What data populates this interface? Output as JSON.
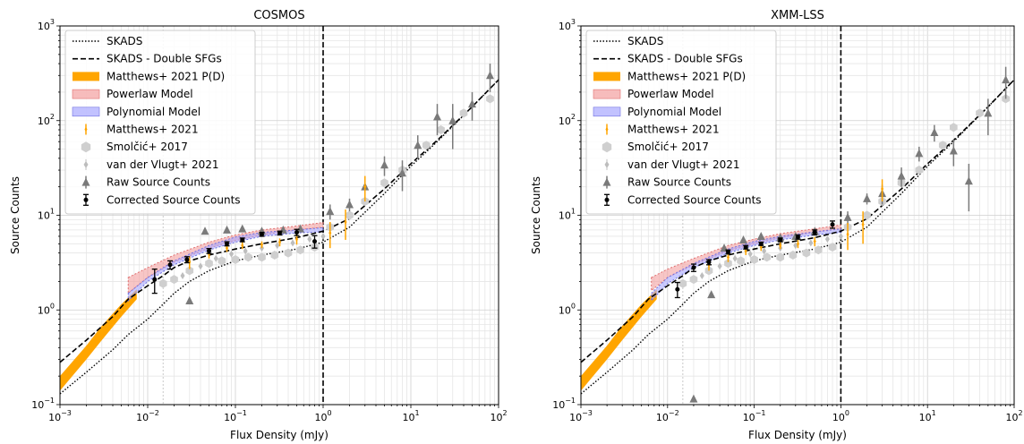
{
  "colors": {
    "matthews_pd": "#ffa500",
    "powerlaw": "#f4a0a0",
    "polynomial": "#a8a8ff",
    "matthews": "#ffa500",
    "smolcic": "#cfcfcf",
    "vandervlugt": "#bdbdbd",
    "raw": "#7a7a7a",
    "corrected": "#000000"
  },
  "chart_data": [
    {
      "type": "scatter",
      "title": "COSMOS",
      "xlabel": "Flux Density (mJy)",
      "ylabel": "Source Counts",
      "xscale": "log",
      "yscale": "log",
      "xlim": [
        0.001,
        100
      ],
      "ylim": [
        0.1,
        1000
      ],
      "x_ticks": [
        {
          "v": 0.001,
          "base": "10",
          "exp": "−3"
        },
        {
          "v": 0.01,
          "base": "10",
          "exp": "−2"
        },
        {
          "v": 0.1,
          "base": "10",
          "exp": "−1"
        },
        {
          "v": 1,
          "base": "10",
          "exp": "0"
        },
        {
          "v": 10,
          "base": "10",
          "exp": "1"
        },
        {
          "v": 100,
          "base": "10",
          "exp": "2"
        }
      ],
      "y_ticks": [
        {
          "v": 0.1,
          "base": "10",
          "exp": "−1"
        },
        {
          "v": 1,
          "base": "10",
          "exp": "0"
        },
        {
          "v": 10,
          "base": "10",
          "exp": "1"
        },
        {
          "v": 100,
          "base": "10",
          "exp": "2"
        },
        {
          "v": 1000,
          "base": "10",
          "exp": "3"
        }
      ],
      "grid": true,
      "legend_position": "upper-left",
      "vline_dashed_x": 1.0,
      "vline_dotted_x": 0.015,
      "legend": [
        {
          "label": "SKADS",
          "kind": "dotted"
        },
        {
          "label": "SKADS - Double SFGs",
          "kind": "dashed"
        },
        {
          "label": "Matthews+ 2021 P(D)",
          "kind": "band_orange"
        },
        {
          "label": "Powerlaw Model",
          "kind": "band_pink"
        },
        {
          "label": "Polynomial Model",
          "kind": "band_blue"
        },
        {
          "label": "Matthews+ 2021",
          "kind": "err_orange"
        },
        {
          "label": "Smolčić+ 2017",
          "kind": "hex_grey"
        },
        {
          "label": "van der Vlugt+ 2021",
          "kind": "diamond_grey"
        },
        {
          "label": "Raw Source Counts",
          "kind": "triangle_grey"
        },
        {
          "label": "Corrected Source Counts",
          "kind": "err_black"
        }
      ],
      "skads": [
        [
          0.001,
          0.13
        ],
        [
          0.002,
          0.22
        ],
        [
          0.004,
          0.38
        ],
        [
          0.006,
          0.55
        ],
        [
          0.01,
          0.8
        ],
        [
          0.015,
          1.15
        ],
        [
          0.02,
          1.5
        ],
        [
          0.03,
          2.0
        ],
        [
          0.05,
          2.6
        ],
        [
          0.1,
          3.3
        ],
        [
          0.2,
          3.8
        ],
        [
          0.5,
          4.4
        ],
        [
          1,
          5.2
        ],
        [
          2,
          7.5
        ],
        [
          5,
          17
        ],
        [
          10,
          33
        ],
        [
          20,
          60
        ],
        [
          50,
          140
        ],
        [
          100,
          270
        ]
      ],
      "skads_double": [
        [
          0.001,
          0.28
        ],
        [
          0.002,
          0.48
        ],
        [
          0.004,
          0.85
        ],
        [
          0.006,
          1.3
        ],
        [
          0.01,
          1.8
        ],
        [
          0.015,
          2.3
        ],
        [
          0.02,
          2.8
        ],
        [
          0.03,
          3.3
        ],
        [
          0.05,
          3.8
        ],
        [
          0.1,
          4.4
        ],
        [
          0.2,
          5.0
        ],
        [
          0.5,
          5.8
        ],
        [
          1,
          6.8
        ],
        [
          2,
          9.2
        ],
        [
          5,
          19
        ],
        [
          10,
          35
        ],
        [
          20,
          62
        ],
        [
          50,
          140
        ],
        [
          100,
          270
        ]
      ],
      "pd_band": {
        "x": [
          0.001,
          0.002,
          0.003,
          0.005,
          0.0075
        ],
        "low": [
          0.14,
          0.3,
          0.48,
          0.85,
          1.3
        ],
        "high": [
          0.2,
          0.42,
          0.68,
          1.15,
          1.65
        ]
      },
      "powerlaw_band": {
        "x": [
          0.006,
          0.01,
          0.02,
          0.05,
          0.1,
          0.2,
          0.5,
          1.0
        ],
        "low": [
          1.5,
          2.2,
          3.2,
          4.5,
          5.4,
          6.2,
          7.0,
          7.5
        ],
        "high": [
          2.2,
          2.8,
          3.8,
          5.2,
          6.2,
          7.0,
          7.7,
          8.4
        ]
      },
      "poly_band": {
        "x": [
          0.006,
          0.01,
          0.02,
          0.05,
          0.1,
          0.2,
          0.5,
          1.0
        ],
        "low": [
          1.25,
          2.0,
          3.0,
          4.3,
          5.2,
          6.0,
          6.5,
          6.7
        ],
        "high": [
          1.5,
          2.2,
          3.3,
          4.8,
          5.9,
          6.6,
          7.0,
          7.4
        ]
      },
      "corrected": [
        [
          0.012,
          2.1,
          0.6
        ],
        [
          0.018,
          3.0,
          0.3
        ],
        [
          0.028,
          3.4,
          0.25
        ],
        [
          0.05,
          4.2,
          0.25
        ],
        [
          0.08,
          5.0,
          0.25
        ],
        [
          0.12,
          5.5,
          0.25
        ],
        [
          0.2,
          6.3,
          0.3
        ],
        [
          0.32,
          6.5,
          0.3
        ],
        [
          0.5,
          6.6,
          0.5
        ],
        [
          0.8,
          5.3,
          0.8
        ]
      ],
      "matthews": [
        [
          0.03,
          3.2,
          0.5
        ],
        [
          0.05,
          3.9,
          0.4
        ],
        [
          0.08,
          4.5,
          0.4
        ],
        [
          0.12,
          4.8,
          0.4
        ],
        [
          0.2,
          4.9,
          0.4
        ],
        [
          0.32,
          5.2,
          0.5
        ],
        [
          0.5,
          5.6,
          0.7
        ],
        [
          1.2,
          6.5,
          2.0
        ],
        [
          1.8,
          8.5,
          3.0
        ],
        [
          3.0,
          20,
          6.0
        ]
      ],
      "smolcic": [
        [
          0.015,
          1.9
        ],
        [
          0.02,
          2.1
        ],
        [
          0.03,
          2.6
        ],
        [
          0.05,
          3.1
        ],
        [
          0.07,
          3.3
        ],
        [
          0.1,
          3.4
        ],
        [
          0.14,
          3.6
        ],
        [
          0.2,
          3.6
        ],
        [
          0.28,
          3.8
        ],
        [
          0.4,
          4.0
        ],
        [
          0.55,
          4.3
        ],
        [
          0.8,
          4.6
        ],
        [
          1.2,
          7.5
        ],
        [
          2,
          10
        ],
        [
          3,
          14
        ],
        [
          5,
          22
        ],
        [
          8,
          30
        ],
        [
          15,
          55
        ],
        [
          22,
          80
        ],
        [
          40,
          120
        ],
        [
          80,
          170
        ]
      ],
      "vandervlugt": [
        [
          0.025,
          2.3
        ],
        [
          0.04,
          2.9
        ],
        [
          0.06,
          3.5
        ],
        [
          0.09,
          3.9
        ],
        [
          0.13,
          4.2
        ],
        [
          0.2,
          4.5
        ],
        [
          0.3,
          4.8
        ],
        [
          0.45,
          5.1
        ],
        [
          0.7,
          5.6
        ],
        [
          1.0,
          6.0
        ]
      ],
      "raw": [
        [
          0.03,
          1.25,
          0
        ],
        [
          0.045,
          6.8,
          0
        ],
        [
          0.08,
          7.0,
          0
        ],
        [
          0.12,
          7.2,
          0
        ],
        [
          0.2,
          6.8,
          0
        ],
        [
          0.35,
          7.0,
          0
        ],
        [
          0.55,
          7.2,
          0
        ],
        [
          1.2,
          11,
          2
        ],
        [
          2.0,
          13,
          2
        ],
        [
          3.0,
          20,
          5
        ],
        [
          5,
          34,
          8
        ],
        [
          8,
          28,
          10
        ],
        [
          12,
          55,
          15
        ],
        [
          20,
          110,
          40
        ],
        [
          30,
          100,
          50
        ],
        [
          50,
          150,
          50
        ],
        [
          80,
          300,
          100
        ]
      ]
    },
    {
      "type": "scatter",
      "title": "XMM-LSS",
      "xlabel": "Flux Density (mJy)",
      "ylabel": "Source Counts",
      "xscale": "log",
      "yscale": "log",
      "xlim": [
        0.001,
        100
      ],
      "ylim": [
        0.1,
        1000
      ],
      "x_ticks": [
        {
          "v": 0.001,
          "base": "10",
          "exp": "−3"
        },
        {
          "v": 0.01,
          "base": "10",
          "exp": "−2"
        },
        {
          "v": 0.1,
          "base": "10",
          "exp": "−1"
        },
        {
          "v": 1,
          "base": "10",
          "exp": "0"
        },
        {
          "v": 10,
          "base": "10",
          "exp": "1"
        },
        {
          "v": 100,
          "base": "10",
          "exp": "2"
        }
      ],
      "y_ticks": [
        {
          "v": 0.1,
          "base": "10",
          "exp": "−1"
        },
        {
          "v": 1,
          "base": "10",
          "exp": "0"
        },
        {
          "v": 10,
          "base": "10",
          "exp": "1"
        },
        {
          "v": 100,
          "base": "10",
          "exp": "2"
        },
        {
          "v": 1000,
          "base": "10",
          "exp": "3"
        }
      ],
      "grid": true,
      "legend_position": "upper-left",
      "vline_dashed_x": 1.0,
      "vline_dotted_x": 0.015,
      "legend": [
        {
          "label": "SKADS",
          "kind": "dotted"
        },
        {
          "label": "SKADS - Double SFGs",
          "kind": "dashed"
        },
        {
          "label": "Matthews+ 2021 P(D)",
          "kind": "band_orange"
        },
        {
          "label": "Powerlaw Model",
          "kind": "band_pink"
        },
        {
          "label": "Polynomial Model",
          "kind": "band_blue"
        },
        {
          "label": "Matthews+ 2021",
          "kind": "err_orange"
        },
        {
          "label": "Smolčić+ 2017",
          "kind": "hex_grey"
        },
        {
          "label": "van der Vlugt+ 2021",
          "kind": "diamond_grey"
        },
        {
          "label": "Raw Source Counts",
          "kind": "triangle_grey"
        },
        {
          "label": "Corrected Source Counts",
          "kind": "err_black"
        }
      ],
      "skads": [
        [
          0.001,
          0.13
        ],
        [
          0.002,
          0.22
        ],
        [
          0.004,
          0.38
        ],
        [
          0.006,
          0.55
        ],
        [
          0.01,
          0.8
        ],
        [
          0.015,
          1.15
        ],
        [
          0.02,
          1.5
        ],
        [
          0.03,
          2.0
        ],
        [
          0.05,
          2.6
        ],
        [
          0.1,
          3.3
        ],
        [
          0.2,
          3.8
        ],
        [
          0.5,
          4.4
        ],
        [
          1,
          5.2
        ],
        [
          2,
          7.5
        ],
        [
          5,
          17
        ],
        [
          10,
          33
        ],
        [
          20,
          60
        ],
        [
          50,
          140
        ],
        [
          100,
          270
        ]
      ],
      "skads_double": [
        [
          0.001,
          0.28
        ],
        [
          0.002,
          0.48
        ],
        [
          0.004,
          0.85
        ],
        [
          0.006,
          1.3
        ],
        [
          0.01,
          1.8
        ],
        [
          0.015,
          2.3
        ],
        [
          0.02,
          2.8
        ],
        [
          0.03,
          3.3
        ],
        [
          0.05,
          3.8
        ],
        [
          0.1,
          4.4
        ],
        [
          0.2,
          5.0
        ],
        [
          0.5,
          5.8
        ],
        [
          1,
          6.8
        ],
        [
          2,
          9.2
        ],
        [
          5,
          19
        ],
        [
          10,
          35
        ],
        [
          20,
          62
        ],
        [
          50,
          140
        ],
        [
          100,
          270
        ]
      ],
      "pd_band": {
        "x": [
          0.001,
          0.002,
          0.003,
          0.005,
          0.0075
        ],
        "low": [
          0.14,
          0.3,
          0.48,
          0.85,
          1.3
        ],
        "high": [
          0.2,
          0.42,
          0.68,
          1.15,
          1.65
        ]
      },
      "powerlaw_band": {
        "x": [
          0.0065,
          0.01,
          0.02,
          0.05,
          0.1,
          0.2,
          0.5,
          1.0
        ],
        "low": [
          1.6,
          2.2,
          3.0,
          4.2,
          5.0,
          5.8,
          6.6,
          7.2
        ],
        "high": [
          2.2,
          2.7,
          3.5,
          4.8,
          5.6,
          6.4,
          7.2,
          7.9
        ]
      },
      "poly_band": {
        "x": [
          0.0065,
          0.01,
          0.02,
          0.05,
          0.1,
          0.2,
          0.5,
          1.0
        ],
        "low": [
          1.25,
          1.9,
          2.8,
          4.0,
          4.8,
          5.5,
          6.2,
          6.6
        ],
        "high": [
          1.5,
          2.2,
          3.1,
          4.4,
          5.3,
          6.0,
          6.7,
          7.2
        ]
      },
      "corrected": [
        [
          0.013,
          1.65,
          0.3
        ],
        [
          0.02,
          2.8,
          0.25
        ],
        [
          0.03,
          3.2,
          0.2
        ],
        [
          0.05,
          4.1,
          0.2
        ],
        [
          0.08,
          4.6,
          0.2
        ],
        [
          0.12,
          5.0,
          0.2
        ],
        [
          0.2,
          5.5,
          0.25
        ],
        [
          0.32,
          5.9,
          0.3
        ],
        [
          0.5,
          6.6,
          0.4
        ],
        [
          0.8,
          8.0,
          0.7
        ]
      ],
      "matthews": [
        [
          0.03,
          3.0,
          0.4
        ],
        [
          0.05,
          3.6,
          0.4
        ],
        [
          0.08,
          4.2,
          0.4
        ],
        [
          0.12,
          4.6,
          0.4
        ],
        [
          0.2,
          4.8,
          0.4
        ],
        [
          0.32,
          5.0,
          0.5
        ],
        [
          0.5,
          5.3,
          0.6
        ],
        [
          1.2,
          6.3,
          2.0
        ],
        [
          1.8,
          8.0,
          3.0
        ],
        [
          3.0,
          19,
          5.0
        ]
      ],
      "smolcic": [
        [
          0.015,
          1.9
        ],
        [
          0.02,
          2.1
        ],
        [
          0.03,
          2.6
        ],
        [
          0.05,
          3.1
        ],
        [
          0.07,
          3.3
        ],
        [
          0.1,
          3.4
        ],
        [
          0.14,
          3.6
        ],
        [
          0.2,
          3.6
        ],
        [
          0.28,
          3.8
        ],
        [
          0.4,
          4.0
        ],
        [
          0.55,
          4.3
        ],
        [
          0.8,
          4.6
        ],
        [
          1.2,
          7.5
        ],
        [
          2,
          10
        ],
        [
          3,
          14
        ],
        [
          5,
          22
        ],
        [
          8,
          30
        ],
        [
          15,
          55
        ],
        [
          20,
          85
        ],
        [
          40,
          120
        ],
        [
          80,
          170
        ]
      ],
      "vandervlugt": [
        [
          0.025,
          2.3
        ],
        [
          0.04,
          2.9
        ],
        [
          0.06,
          3.5
        ],
        [
          0.09,
          3.9
        ],
        [
          0.13,
          4.2
        ],
        [
          0.2,
          4.5
        ],
        [
          0.3,
          4.8
        ],
        [
          0.45,
          5.1
        ],
        [
          0.7,
          5.6
        ],
        [
          1.0,
          6.0
        ]
      ],
      "raw": [
        [
          0.02,
          0.115,
          0
        ],
        [
          0.032,
          1.45,
          0
        ],
        [
          0.045,
          4.5,
          0
        ],
        [
          0.075,
          5.5,
          0
        ],
        [
          0.12,
          6.0,
          0
        ],
        [
          0.2,
          5.8,
          0
        ],
        [
          0.3,
          6.0,
          0
        ],
        [
          0.5,
          6.8,
          0
        ],
        [
          1.2,
          9.5,
          1.5
        ],
        [
          2.0,
          15,
          2
        ],
        [
          3.0,
          17,
          4
        ],
        [
          5,
          26,
          6
        ],
        [
          8,
          45,
          8
        ],
        [
          12,
          75,
          15
        ],
        [
          20,
          48,
          15
        ],
        [
          30,
          23,
          12
        ],
        [
          50,
          120,
          50
        ],
        [
          80,
          270,
          100
        ]
      ]
    }
  ]
}
